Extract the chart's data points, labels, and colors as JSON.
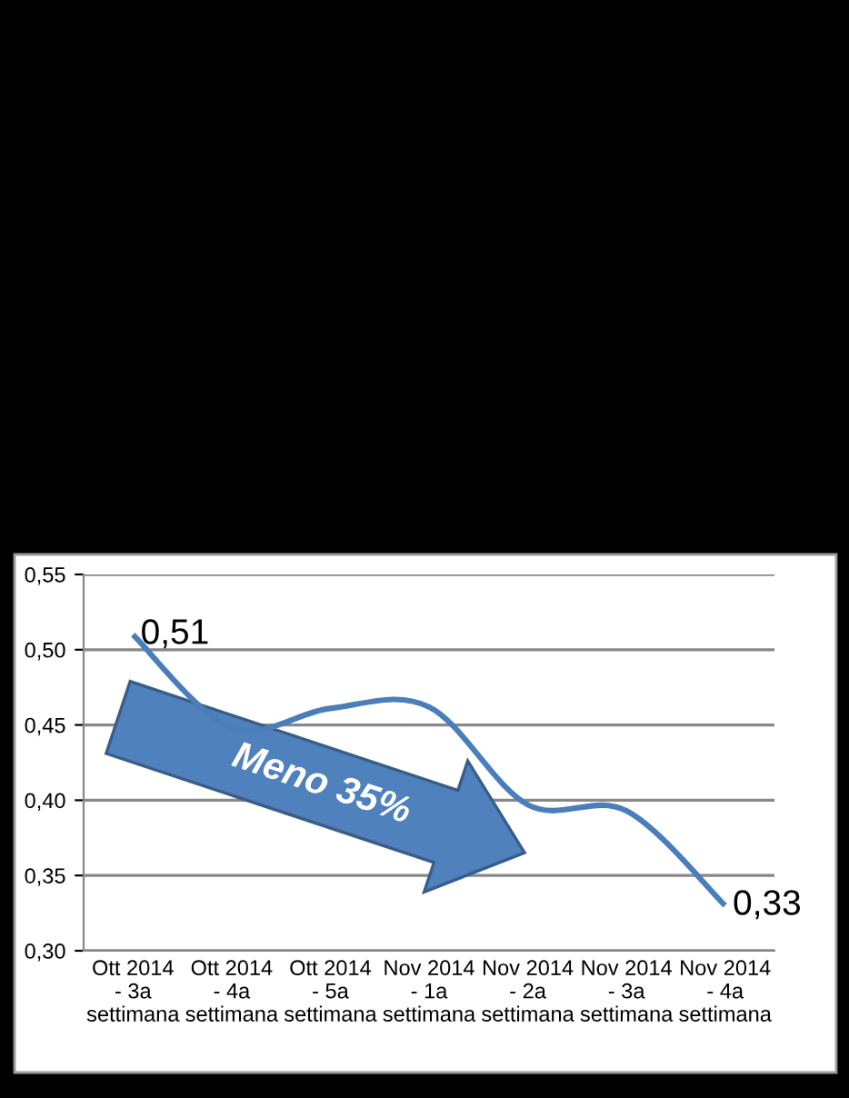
{
  "chart_data": {
    "type": "line",
    "categories": [
      "Ott 2014 - 3a settimana",
      "Ott 2014 - 4a settimana",
      "Ott 2014 - 5a settimana",
      "Nov 2014 - 1a settimana",
      "Nov 2014 - 2a settimana",
      "Nov 2014 - 3a settimana",
      "Nov 2014 - 4a settimana"
    ],
    "series": [
      {
        "color": "#4a7ebb",
        "values": [
          0.51,
          0.448,
          0.461,
          0.462,
          0.397,
          0.393,
          0.33
        ],
        "value_labels": [
          "0,51",
          null,
          null,
          null,
          null,
          null,
          "0,33"
        ]
      }
    ],
    "ylim": [
      0.3,
      0.55
    ],
    "yticks": [
      {
        "value": 0.3,
        "label": "0,30"
      },
      {
        "value": 0.35,
        "label": "0,35"
      },
      {
        "value": 0.4,
        "label": "0,40"
      },
      {
        "value": 0.45,
        "label": "0,45"
      },
      {
        "value": 0.5,
        "label": "0,50"
      },
      {
        "value": 0.55,
        "label": "0,55"
      }
    ],
    "grid": "y",
    "marker": "none",
    "line_style": "solid",
    "annotations": [
      "Meno 35%"
    ]
  }
}
